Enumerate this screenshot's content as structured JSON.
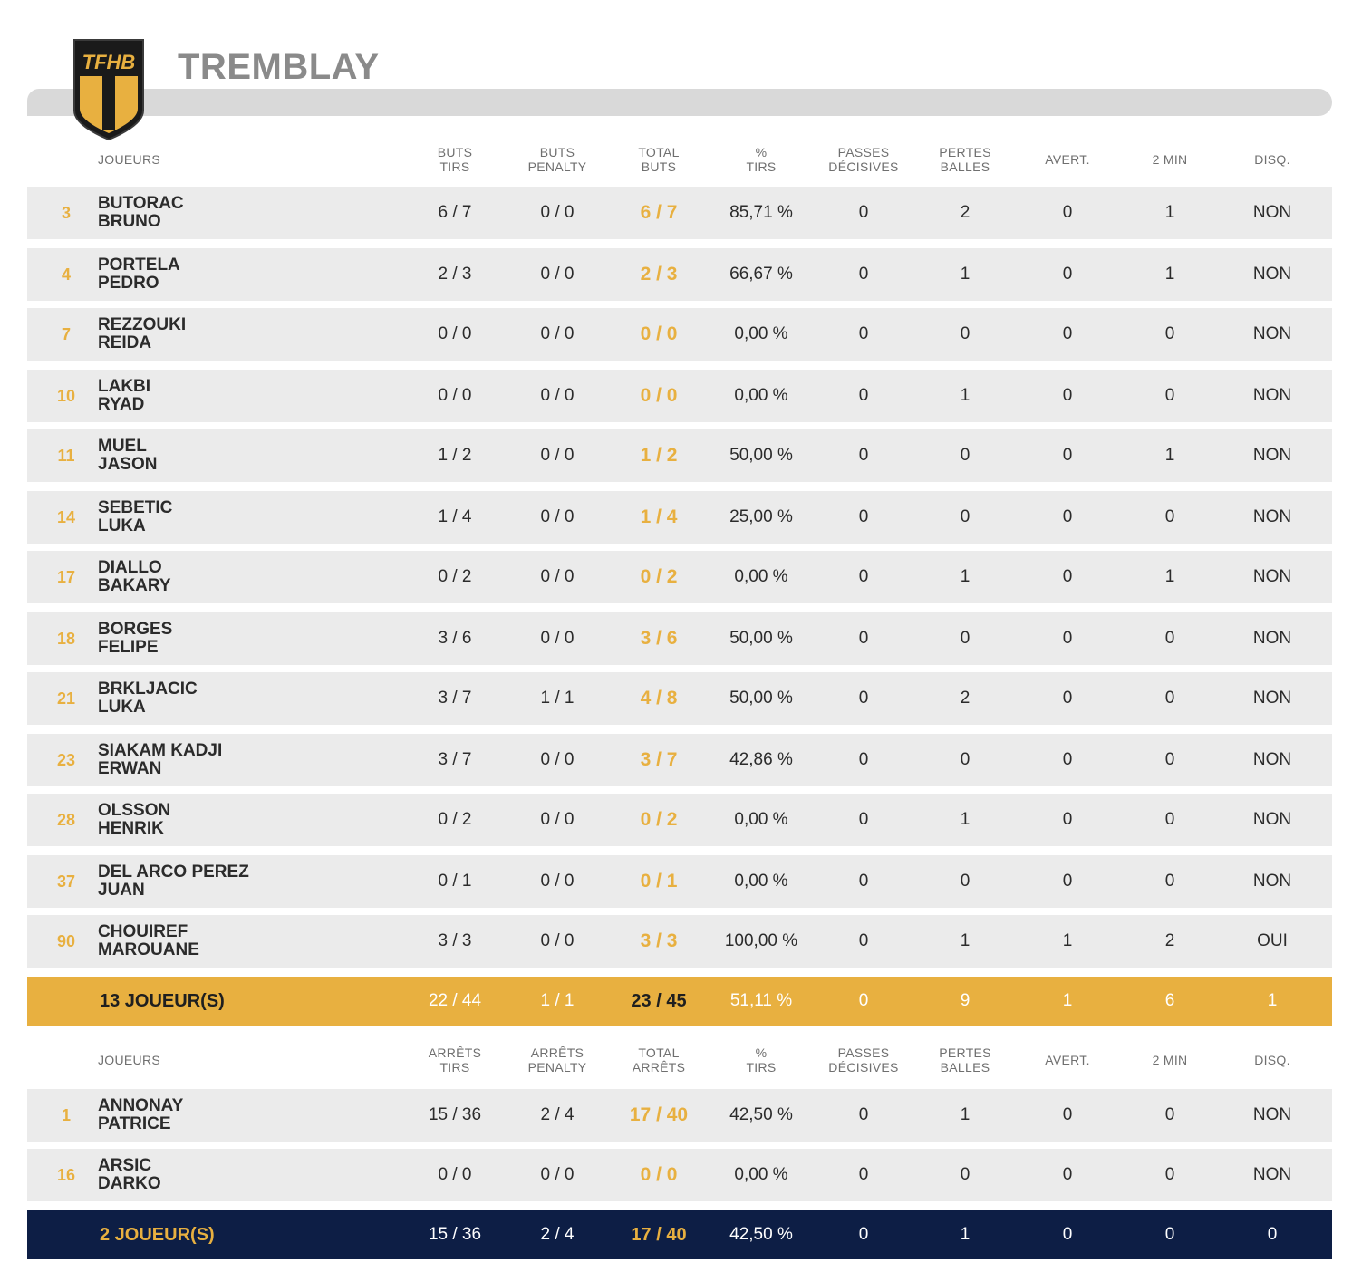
{
  "team": {
    "name": "TREMBLAY",
    "logo_text": "TFHB",
    "colors": {
      "gold": "#e8b040",
      "navy": "#0d1e45",
      "row_bg": "#ebebeb"
    }
  },
  "field_players": {
    "headers": {
      "players": "JOUEURS",
      "c1": [
        "BUTS",
        "TIRS"
      ],
      "c2": [
        "BUTS",
        "PENALTY"
      ],
      "c3": [
        "TOTAL",
        "BUTS"
      ],
      "c4": [
        "%",
        "TIRS"
      ],
      "c5": [
        "PASSES",
        "DÉCISIVES"
      ],
      "c6": [
        "PERTES",
        "BALLES"
      ],
      "c7": "AVERT.",
      "c8": "2 MIN",
      "c9": "DISQ."
    },
    "rows": [
      {
        "num": "3",
        "last": "BUTORAC",
        "first": "BRUNO",
        "shots": "6 / 7",
        "penalty": "0 / 0",
        "total": "6 / 7",
        "pct": "85,71 %",
        "assists": "0",
        "turnovers": "2",
        "warn": "0",
        "twomin": "1",
        "disq": "NON"
      },
      {
        "num": "4",
        "last": "PORTELA",
        "first": "PEDRO",
        "shots": "2 / 3",
        "penalty": "0 / 0",
        "total": "2 / 3",
        "pct": "66,67 %",
        "assists": "0",
        "turnovers": "1",
        "warn": "0",
        "twomin": "1",
        "disq": "NON"
      },
      {
        "num": "7",
        "last": "REZZOUKI",
        "first": "REIDA",
        "shots": "0 / 0",
        "penalty": "0 / 0",
        "total": "0 / 0",
        "pct": "0,00 %",
        "assists": "0",
        "turnovers": "0",
        "warn": "0",
        "twomin": "0",
        "disq": "NON"
      },
      {
        "num": "10",
        "last": "LAKBI",
        "first": "RYAD",
        "shots": "0 / 0",
        "penalty": "0 / 0",
        "total": "0 / 0",
        "pct": "0,00 %",
        "assists": "0",
        "turnovers": "1",
        "warn": "0",
        "twomin": "0",
        "disq": "NON"
      },
      {
        "num": "11",
        "last": "MUEL",
        "first": "JASON",
        "shots": "1 / 2",
        "penalty": "0 / 0",
        "total": "1 / 2",
        "pct": "50,00 %",
        "assists": "0",
        "turnovers": "0",
        "warn": "0",
        "twomin": "1",
        "disq": "NON"
      },
      {
        "num": "14",
        "last": "SEBETIC",
        "first": "LUKA",
        "shots": "1 / 4",
        "penalty": "0 / 0",
        "total": "1 / 4",
        "pct": "25,00 %",
        "assists": "0",
        "turnovers": "0",
        "warn": "0",
        "twomin": "0",
        "disq": "NON"
      },
      {
        "num": "17",
        "last": "DIALLO",
        "first": "BAKARY",
        "shots": "0 / 2",
        "penalty": "0 / 0",
        "total": "0 / 2",
        "pct": "0,00 %",
        "assists": "0",
        "turnovers": "1",
        "warn": "0",
        "twomin": "1",
        "disq": "NON"
      },
      {
        "num": "18",
        "last": "BORGES",
        "first": "FELIPE",
        "shots": "3 / 6",
        "penalty": "0 / 0",
        "total": "3 / 6",
        "pct": "50,00 %",
        "assists": "0",
        "turnovers": "0",
        "warn": "0",
        "twomin": "0",
        "disq": "NON"
      },
      {
        "num": "21",
        "last": "BRKLJACIC",
        "first": "LUKA",
        "shots": "3 / 7",
        "penalty": "1 / 1",
        "total": "4 / 8",
        "pct": "50,00 %",
        "assists": "0",
        "turnovers": "2",
        "warn": "0",
        "twomin": "0",
        "disq": "NON"
      },
      {
        "num": "23",
        "last": "SIAKAM KADJI",
        "first": "ERWAN",
        "shots": "3 / 7",
        "penalty": "0 / 0",
        "total": "3 / 7",
        "pct": "42,86 %",
        "assists": "0",
        "turnovers": "0",
        "warn": "0",
        "twomin": "0",
        "disq": "NON"
      },
      {
        "num": "28",
        "last": "OLSSON",
        "first": "HENRIK",
        "shots": "0 / 2",
        "penalty": "0 / 0",
        "total": "0 / 2",
        "pct": "0,00 %",
        "assists": "0",
        "turnovers": "1",
        "warn": "0",
        "twomin": "0",
        "disq": "NON"
      },
      {
        "num": "37",
        "last": "DEL ARCO PEREZ",
        "first": "JUAN",
        "shots": "0 / 1",
        "penalty": "0 / 0",
        "total": "0 / 1",
        "pct": "0,00 %",
        "assists": "0",
        "turnovers": "0",
        "warn": "0",
        "twomin": "0",
        "disq": "NON"
      },
      {
        "num": "90",
        "last": "CHOUIREF",
        "first": "MAROUANE",
        "shots": "3 / 3",
        "penalty": "0 / 0",
        "total": "3 / 3",
        "pct": "100,00 %",
        "assists": "0",
        "turnovers": "1",
        "warn": "1",
        "twomin": "2",
        "disq": "OUI"
      }
    ],
    "summary": {
      "label": "13 JOUEUR(S)",
      "shots": "22 / 44",
      "penalty": "1 / 1",
      "total": "23 / 45",
      "pct": "51,11 %",
      "assists": "0",
      "turnovers": "9",
      "warn": "1",
      "twomin": "6",
      "disq": "1"
    }
  },
  "goalkeepers": {
    "headers": {
      "players": "JOUEURS",
      "c1": [
        "ARRÊTS",
        "TIRS"
      ],
      "c2": [
        "ARRÊTS",
        "PENALTY"
      ],
      "c3": [
        "TOTAL",
        "ARRÊTS"
      ],
      "c4": [
        "%",
        "TIRS"
      ],
      "c5": [
        "PASSES",
        "DÉCISIVES"
      ],
      "c6": [
        "PERTES",
        "BALLES"
      ],
      "c7": "AVERT.",
      "c8": "2 MIN",
      "c9": "DISQ."
    },
    "rows": [
      {
        "num": "1",
        "last": "ANNONAY",
        "first": "PATRICE",
        "shots": "15 / 36",
        "penalty": "2 / 4",
        "total": "17 / 40",
        "pct": "42,50 %",
        "assists": "0",
        "turnovers": "1",
        "warn": "0",
        "twomin": "0",
        "disq": "NON"
      },
      {
        "num": "16",
        "last": "ARSIC",
        "first": "DARKO",
        "shots": "0 / 0",
        "penalty": "0 / 0",
        "total": "0 / 0",
        "pct": "0,00 %",
        "assists": "0",
        "turnovers": "0",
        "warn": "0",
        "twomin": "0",
        "disq": "NON"
      }
    ],
    "summary": {
      "label": "2 JOUEUR(S)",
      "shots": "15 / 36",
      "penalty": "2 / 4",
      "total": "17 / 40",
      "pct": "42,50 %",
      "assists": "0",
      "turnovers": "1",
      "warn": "0",
      "twomin": "0",
      "disq": "0"
    }
  }
}
